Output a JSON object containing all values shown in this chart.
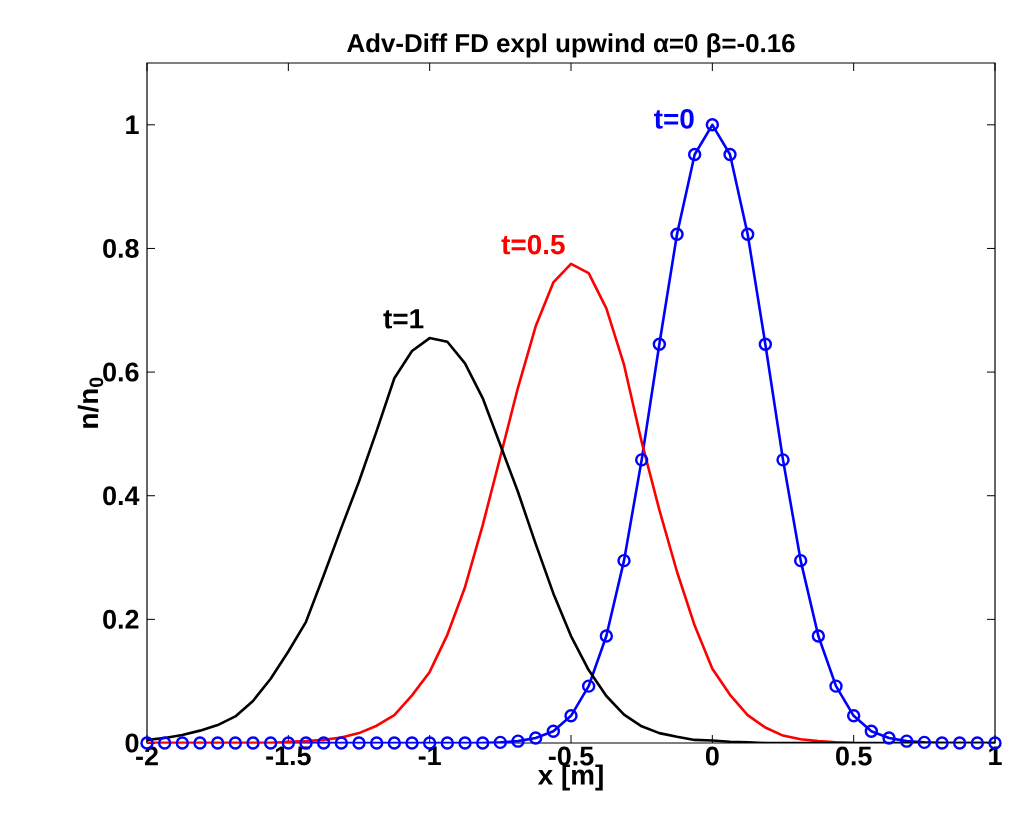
{
  "chart_data": {
    "type": "line",
    "title": "Adv-Diff FD expl upwind  α=0 β=-0.16",
    "xlabel": "x [m]",
    "ylabel": "n/n$_{0}$",
    "x": [
      -2,
      -1.9375,
      -1.875,
      -1.8125,
      -1.75,
      -1.6875,
      -1.625,
      -1.5625,
      -1.5,
      -1.4375,
      -1.375,
      -1.3125,
      -1.25,
      -1.1875,
      -1.125,
      -1.0625,
      -1,
      -0.9375,
      -0.875,
      -0.8125,
      -0.75,
      -0.6875,
      -0.625,
      -0.5625,
      -0.5,
      -0.4375,
      -0.375,
      -0.3125,
      -0.25,
      -0.1875,
      -0.125,
      -0.0625,
      0,
      0.0625,
      0.125,
      0.1875,
      0.25,
      0.3125,
      0.375,
      0.4375,
      0.5,
      0.5625,
      0.625,
      0.6875,
      0.75,
      0.8125,
      0.875,
      0.9375,
      1
    ],
    "series": [
      {
        "name": "t=0",
        "color": "#0000ff",
        "marker": "circle",
        "values": [
          0,
          0,
          0,
          0,
          0,
          0,
          0,
          0,
          0,
          0,
          0,
          0,
          0,
          0,
          0,
          0,
          0,
          0,
          0,
          0,
          0.001,
          0.003,
          0.008,
          0.019,
          0.044,
          0.092,
          0.173,
          0.295,
          0.458,
          0.645,
          0.823,
          0.952,
          1,
          0.952,
          0.823,
          0.645,
          0.458,
          0.295,
          0.173,
          0.092,
          0.044,
          0.019,
          0.008,
          0.003,
          0.001,
          0,
          0,
          0,
          0
        ]
      },
      {
        "name": "t=0.5",
        "color": "#ff0000",
        "marker": "none",
        "values": [
          0,
          0,
          0,
          0,
          0,
          0,
          0,
          0,
          0.002,
          0.003,
          0.005,
          0.009,
          0.016,
          0.028,
          0.045,
          0.077,
          0.115,
          0.175,
          0.252,
          0.352,
          0.463,
          0.575,
          0.674,
          0.745,
          0.775,
          0.76,
          0.703,
          0.612,
          0.487,
          0.377,
          0.277,
          0.19,
          0.12,
          0.078,
          0.045,
          0.025,
          0.012,
          0.006,
          0.003,
          0.001,
          0,
          null,
          null,
          null,
          null,
          null,
          null,
          null,
          null
        ]
      },
      {
        "name": "t=1",
        "color": "#000000",
        "marker": "none",
        "values": [
          0.005,
          0.008,
          0.013,
          0.02,
          0.029,
          0.043,
          0.068,
          0.104,
          0.148,
          0.196,
          0.271,
          0.348,
          0.423,
          0.505,
          0.59,
          0.634,
          0.655,
          0.649,
          0.614,
          0.558,
          0.482,
          0.406,
          0.322,
          0.242,
          0.173,
          0.118,
          0.076,
          0.046,
          0.027,
          0.016,
          0.01,
          0.005,
          0.004,
          0.002,
          0.001,
          0,
          0,
          0,
          0,
          0,
          0,
          0,
          0,
          0,
          0,
          0,
          0,
          0,
          0
        ]
      }
    ],
    "xlim": [
      -2,
      1
    ],
    "ylim": [
      0,
      1.1
    ],
    "xticks": [
      -2,
      -1.5,
      -1,
      -0.5,
      0,
      0.5,
      1
    ],
    "yticks": [
      0,
      0.2,
      0.4,
      0.6,
      0.8,
      1
    ],
    "legend": false
  }
}
